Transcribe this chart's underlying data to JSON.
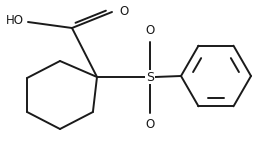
{
  "background_color": "#ffffff",
  "line_color": "#1a1a1a",
  "line_width": 1.4,
  "fig_width": 2.72,
  "fig_height": 1.54,
  "dpi": 100,
  "xlim": [
    0,
    272
  ],
  "ylim": [
    0,
    154
  ]
}
